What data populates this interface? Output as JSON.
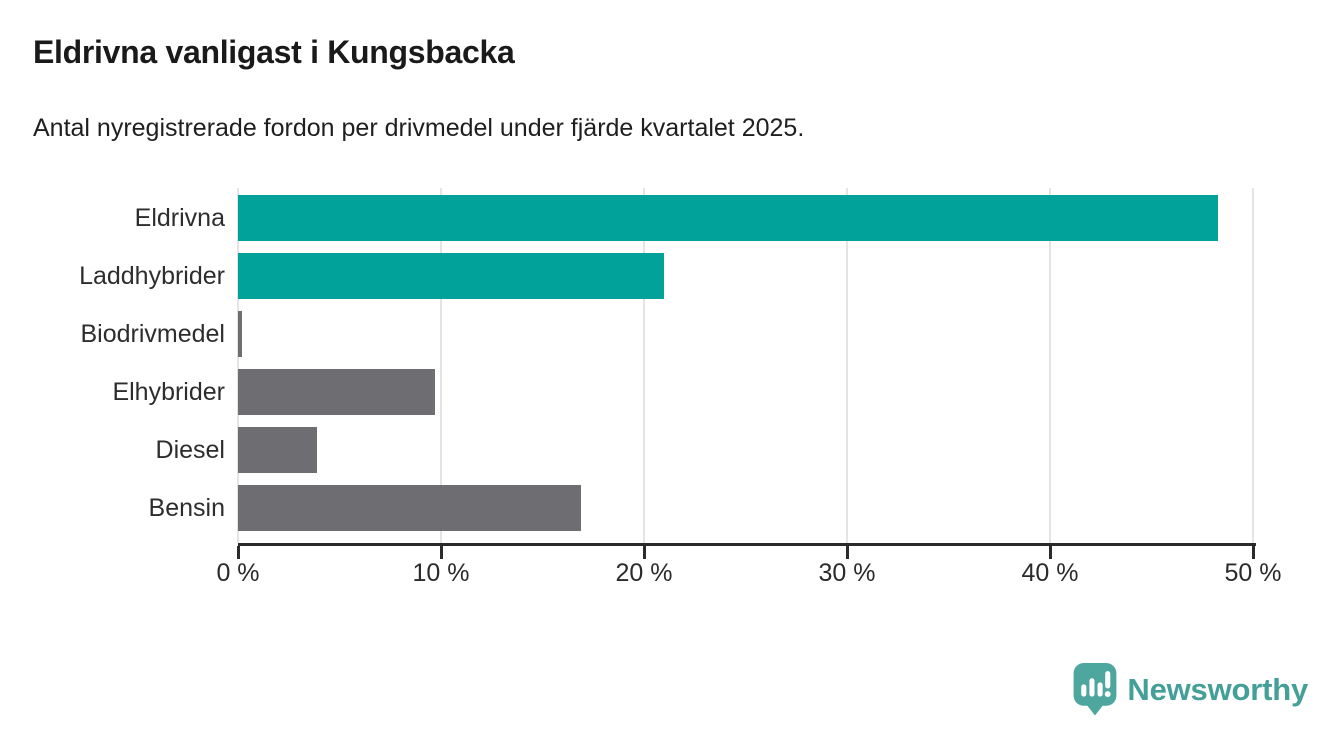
{
  "header": {
    "title": "Eldrivna vanligast i Kungsbacka",
    "subtitle": "Antal nyregistrerade fordon per drivmedel under fjärde kvartalet 2025."
  },
  "chart_data": {
    "type": "bar",
    "orientation": "horizontal",
    "title": "Eldrivna vanligast i Kungsbacka",
    "subtitle": "Antal nyregistrerade fordon per drivmedel under fjärde kvartalet 2025.",
    "categories": [
      "Eldrivna",
      "Laddhybrider",
      "Biodrivmedel",
      "Elhybrider",
      "Diesel",
      "Bensin"
    ],
    "values": [
      48.3,
      21.0,
      0.2,
      9.7,
      3.9,
      16.9
    ],
    "unit": "%",
    "xlim": [
      0,
      50
    ],
    "x_ticks": [
      0,
      10,
      20,
      30,
      40,
      50
    ],
    "x_tick_labels": [
      "0 %",
      "10 %",
      "20 %",
      "30 %",
      "40 %",
      "50 %"
    ],
    "bar_colors": [
      "#00a29a",
      "#00a29a",
      "#6e6e72",
      "#6e6e72",
      "#6e6e72",
      "#6e6e72"
    ],
    "grid": "vertical",
    "legend": "none"
  },
  "colors": {
    "accent_teal": "#00a29a",
    "neutral_gray": "#6e6e72",
    "gridline": "#e4e4e4",
    "axis": "#2b2b2b",
    "brand_teal": "#449f98"
  },
  "footer": {
    "brand": "Newsworthy",
    "logo_icon": "newsworthy-pin-barchart-icon"
  }
}
